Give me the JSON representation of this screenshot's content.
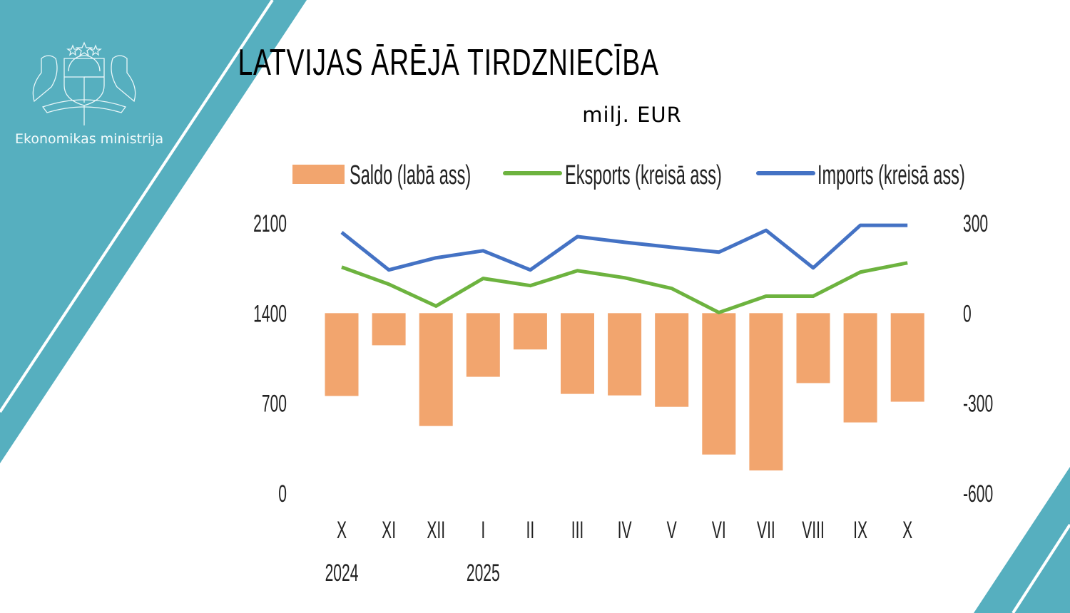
{
  "org_name": "Ekonomikas ministrija",
  "logo": "coat-of-arms-of-latvia",
  "colors": {
    "background_accent": "#56afbf",
    "saldo": "#f2a56e",
    "eksports": "#6db33f",
    "imports": "#4472c4"
  },
  "chart_data": {
    "type": "bar+line",
    "title": "LATVIJAS ĀRĒJĀ TIRDZNIECĪBA",
    "subtitle": "milj. EUR",
    "categories": [
      "X",
      "XI",
      "XII",
      "I",
      "II",
      "III",
      "IV",
      "V",
      "VI",
      "VII",
      "VIII",
      "IX",
      "X"
    ],
    "year_labels": [
      {
        "category_index": 0,
        "label": "2024"
      },
      {
        "category_index": 3,
        "label": "2025"
      }
    ],
    "left_axis": {
      "ylim": [
        0,
        2100
      ],
      "ticks": [
        "0",
        "700",
        "1400",
        "2100"
      ]
    },
    "right_axis": {
      "ylim": [
        -600,
        300
      ],
      "ticks": [
        "-600",
        "-300",
        "0",
        "300"
      ]
    },
    "legend_position": "top",
    "grid": false,
    "series": [
      {
        "name": "Saldo (labā ass)",
        "type": "bar",
        "axis": "right",
        "values": [
          -276,
          -107,
          -376,
          -212,
          -121,
          -269,
          -274,
          -312,
          -471,
          -524,
          -233,
          -364,
          -295
        ]
      },
      {
        "name": "Eksports (kreisā ass)",
        "type": "line",
        "axis": "left",
        "values": [
          1758,
          1625,
          1455,
          1670,
          1614,
          1730,
          1675,
          1592,
          1405,
          1532,
          1532,
          1719,
          1791
        ]
      },
      {
        "name": "Imports (kreisā ass)",
        "type": "line",
        "axis": "left",
        "values": [
          2028,
          1736,
          1830,
          1885,
          1736,
          1995,
          1951,
          1912,
          1874,
          2044,
          1752,
          2083,
          2083
        ]
      }
    ]
  }
}
